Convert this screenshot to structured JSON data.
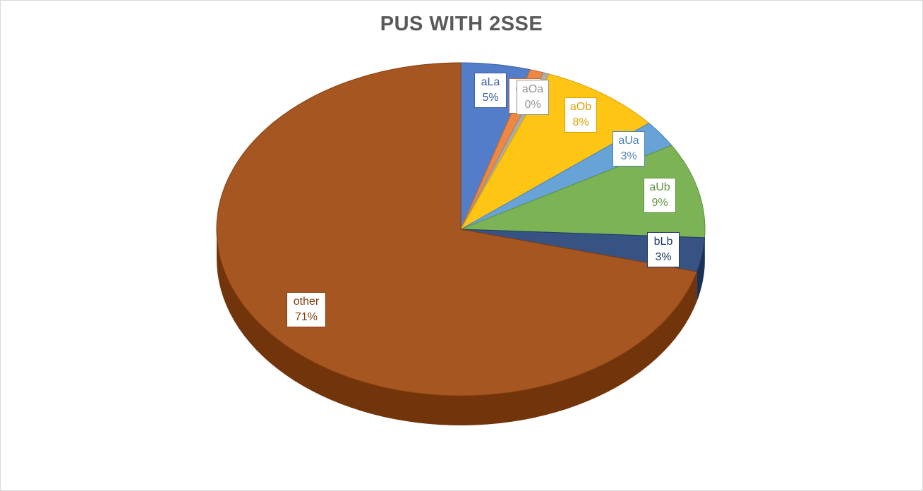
{
  "chart_data": {
    "type": "pie",
    "title": "PUS WITH 2SSE",
    "slices": [
      {
        "name": "aLa",
        "pct_label": "5%",
        "value": 4.6,
        "color": "#4472c4"
      },
      {
        "name": "aLb",
        "pct_label": "1%",
        "value": 0.9,
        "color": "#ed7d31"
      },
      {
        "name": "aOa",
        "pct_label": "0%",
        "value": 0.4,
        "color": "#a5a5a5"
      },
      {
        "name": "aOb",
        "pct_label": "8%",
        "value": 8.1,
        "color": "#ffc000"
      },
      {
        "name": "aUa",
        "pct_label": "3%",
        "value": 2.6,
        "color": "#5b9bd5"
      },
      {
        "name": "aUb",
        "pct_label": "9%",
        "value": 9.2,
        "color": "#70ad47"
      },
      {
        "name": "bLb",
        "pct_label": "3%",
        "value": 3.3,
        "color": "#264478"
      },
      {
        "name": "other",
        "pct_label": "71%",
        "value": 70.9,
        "color": "#9e480e"
      }
    ]
  }
}
